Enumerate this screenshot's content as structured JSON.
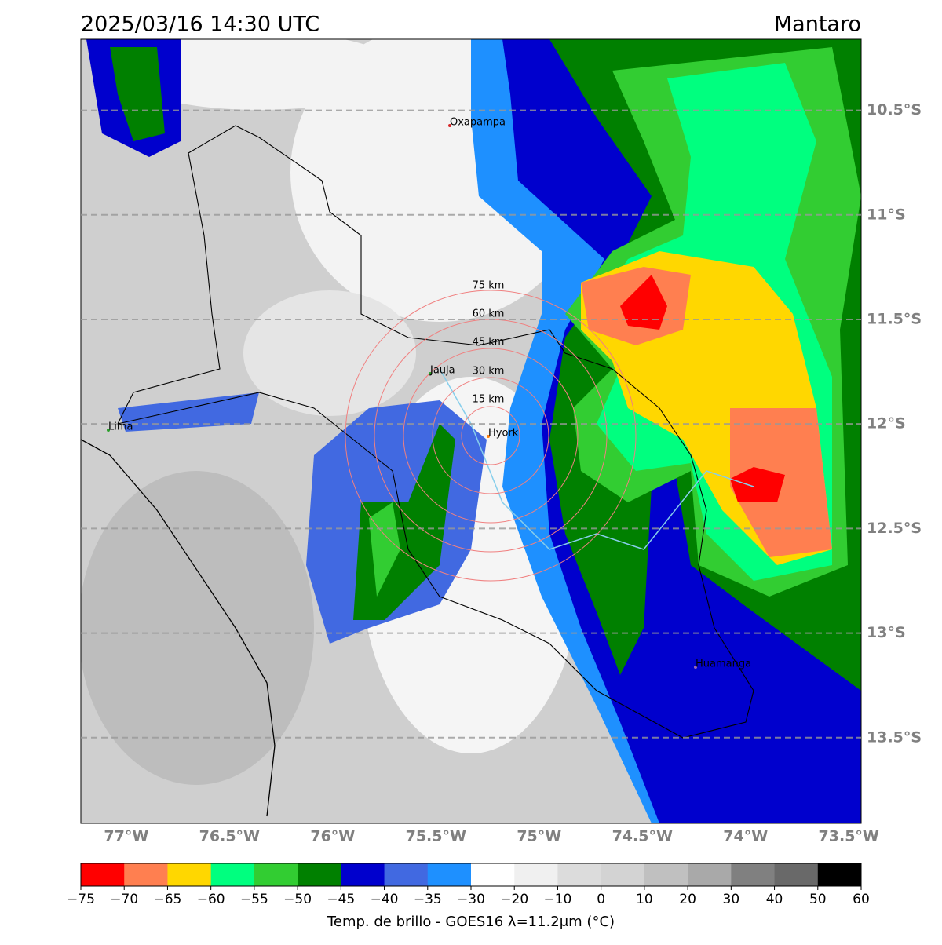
{
  "title": "2025/03/16 14:30 UTC",
  "region": "Mantaro",
  "map": {
    "xlim": [
      -77.22,
      -73.44
    ],
    "ylim": [
      -13.91,
      -10.16
    ],
    "lon_ticks": [
      {
        "value": -77,
        "label": "77°W"
      },
      {
        "value": -76.5,
        "label": "76.5°W"
      },
      {
        "value": -76,
        "label": "76°W"
      },
      {
        "value": -75.5,
        "label": "75.5°W"
      },
      {
        "value": -75,
        "label": "75°W"
      },
      {
        "value": -74.5,
        "label": "74.5°W"
      },
      {
        "value": -74,
        "label": "74°W"
      },
      {
        "value": -73.5,
        "label": "73.5°W"
      }
    ],
    "lat_ticks": [
      {
        "value": -10.5,
        "label": "10.5°S"
      },
      {
        "value": -11,
        "label": "11°S"
      },
      {
        "value": -11.5,
        "label": "11.5°S"
      },
      {
        "value": -12,
        "label": "12°S"
      },
      {
        "value": -12.5,
        "label": "12.5°S"
      },
      {
        "value": -13,
        "label": "13°S"
      },
      {
        "value": -13.5,
        "label": "13.5°S"
      }
    ],
    "range_rings": [
      "15 km",
      "30 km",
      "45 km",
      "60 km",
      "75 km"
    ],
    "cities": [
      "Oxapampa",
      "Jauja",
      "Hyork",
      "Lima",
      "Huamanga"
    ]
  },
  "colorbar": {
    "label": "Temp. de brillo - GOES16 λ=11.2μm (°C)",
    "ticks": [
      {
        "value": -75,
        "label": "−75"
      },
      {
        "value": -70,
        "label": "−70"
      },
      {
        "value": -65,
        "label": "−65"
      },
      {
        "value": -60,
        "label": "−60"
      },
      {
        "value": -55,
        "label": "−55"
      },
      {
        "value": -50,
        "label": "−50"
      },
      {
        "value": -45,
        "label": "−45"
      },
      {
        "value": -40,
        "label": "−40"
      },
      {
        "value": -35,
        "label": "−35"
      },
      {
        "value": -30,
        "label": "−30"
      },
      {
        "value": -20,
        "label": "−20"
      },
      {
        "value": -10,
        "label": "−10"
      },
      0,
      10,
      20,
      30,
      40,
      50,
      60
    ],
    "colors": [
      "#ff0000",
      "#ff7f50",
      "#ffd700",
      "#00ff7f",
      "#32cd32",
      "#008000",
      "#0000cd",
      "#4169e1",
      "#1e90ff",
      "#ffffff",
      "#f0f0f0",
      "#dcdcdc",
      "#d3d3d3",
      "#c0c0c0",
      "#a9a9a9",
      "#808080",
      "#696969",
      "#000000"
    ]
  }
}
